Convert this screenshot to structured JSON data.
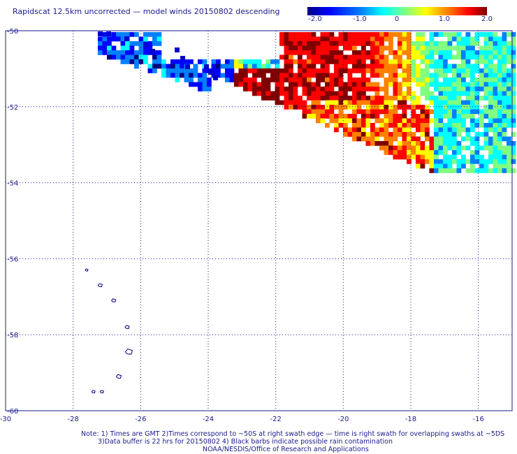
{
  "header": {
    "title": "Rapidscat 12.5km uncorrected — model winds 20150802 descending"
  },
  "colorbar": {
    "tick_labels": [
      "-2.0",
      "-1.0",
      "0",
      "1.0",
      "2.0"
    ],
    "range": [
      -2.0,
      2.0
    ],
    "colors": [
      "#000080",
      "#0000ff",
      "#0080ff",
      "#00ffff",
      "#80ff80",
      "#ffff00",
      "#ff8000",
      "#ff0000",
      "#800000"
    ]
  },
  "map": {
    "lon_range": [
      -30,
      -15
    ],
    "lat_range": [
      -60,
      -50
    ],
    "lon_tick_labels": [
      "-30",
      "-28",
      "-26",
      "-24",
      "-22",
      "-20",
      "-18",
      "-16"
    ],
    "lat_tick_labels": [
      "-50",
      "-52",
      "-54",
      "-56",
      "-58",
      "-60"
    ],
    "grid": true,
    "coast_color": "#000080"
  },
  "notes": {
    "line1": "Note: 1) Times are GMT 2)Times correspond to ~50S at right swath edge — time is right swath for overlapping swaths at ~5DS",
    "line2": "3)Data buffer is 22 hrs for 20150802 4) Black barbs indicate possible rain contamination",
    "line3": "NOAA/NESDIS/Office of Research and Applications"
  }
}
